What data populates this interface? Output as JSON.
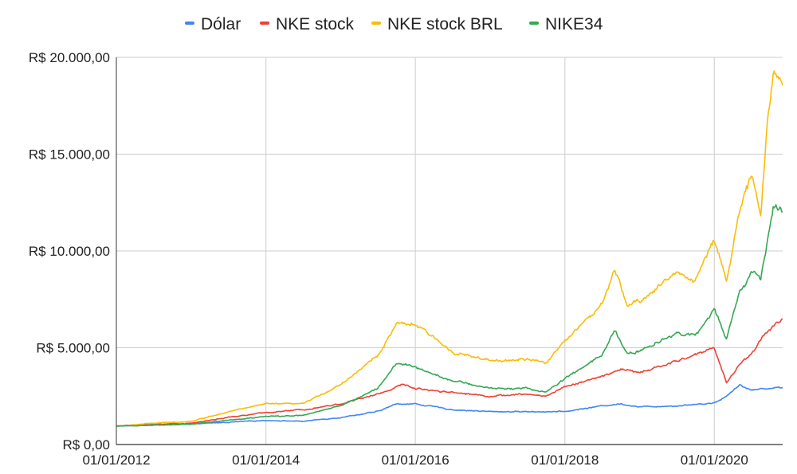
{
  "chart_data": {
    "type": "line",
    "title": "",
    "xlabel": "",
    "ylabel": "",
    "x_ticks": [
      "01/01/2012",
      "01/01/2014",
      "01/01/2016",
      "01/01/2018",
      "01/01/2020"
    ],
    "y_ticks": [
      "R$ 0,00",
      "R$ 5.000,00",
      "R$ 10.000,00",
      "R$ 15.000,00",
      "R$ 20.000,00"
    ],
    "xlim": [
      "2012-01-01",
      "2020-11-30"
    ],
    "ylim": [
      0,
      20000
    ],
    "grid": true,
    "legend_position": "top",
    "series": [
      {
        "name": "Dólar",
        "color": "#4285f4",
        "points": [
          [
            "2012-01-01",
            950
          ],
          [
            "2013-01-01",
            1060
          ],
          [
            "2013-07-01",
            1150
          ],
          [
            "2014-01-01",
            1250
          ],
          [
            "2014-07-01",
            1200
          ],
          [
            "2015-01-01",
            1400
          ],
          [
            "2015-07-01",
            1700
          ],
          [
            "2015-10-01",
            2100
          ],
          [
            "2016-01-01",
            2100
          ],
          [
            "2016-07-01",
            1800
          ],
          [
            "2017-01-01",
            1700
          ],
          [
            "2017-07-01",
            1700
          ],
          [
            "2018-01-01",
            1700
          ],
          [
            "2018-07-01",
            2000
          ],
          [
            "2018-10-01",
            2100
          ],
          [
            "2019-01-01",
            1950
          ],
          [
            "2019-07-01",
            2000
          ],
          [
            "2020-01-01",
            2150
          ],
          [
            "2020-03-01",
            2500
          ],
          [
            "2020-05-01",
            3100
          ],
          [
            "2020-07-01",
            2800
          ],
          [
            "2020-09-01",
            2900
          ],
          [
            "2020-11-30",
            2950
          ]
        ]
      },
      {
        "name": "NKE stock",
        "color": "#ea4335",
        "points": [
          [
            "2012-01-01",
            950
          ],
          [
            "2012-07-01",
            1050
          ],
          [
            "2013-01-01",
            1100
          ],
          [
            "2013-07-01",
            1400
          ],
          [
            "2014-01-01",
            1650
          ],
          [
            "2014-07-01",
            1800
          ],
          [
            "2015-01-01",
            2100
          ],
          [
            "2015-07-01",
            2600
          ],
          [
            "2015-11-01",
            3100
          ],
          [
            "2016-01-01",
            2900
          ],
          [
            "2016-07-01",
            2700
          ],
          [
            "2017-01-01",
            2500
          ],
          [
            "2017-07-01",
            2600
          ],
          [
            "2017-10-01",
            2500
          ],
          [
            "2018-01-01",
            3000
          ],
          [
            "2018-07-01",
            3500
          ],
          [
            "2018-10-01",
            3900
          ],
          [
            "2019-01-01",
            3700
          ],
          [
            "2019-07-01",
            4300
          ],
          [
            "2020-01-01",
            5000
          ],
          [
            "2020-03-01",
            3200
          ],
          [
            "2020-05-01",
            4100
          ],
          [
            "2020-07-01",
            4700
          ],
          [
            "2020-09-01",
            5700
          ],
          [
            "2020-11-30",
            6500
          ]
        ]
      },
      {
        "name": "NKE stock BRL",
        "color": "#fbbc04",
        "points": [
          [
            "2012-01-01",
            950
          ],
          [
            "2012-07-01",
            1100
          ],
          [
            "2013-01-01",
            1200
          ],
          [
            "2013-07-01",
            1700
          ],
          [
            "2014-01-01",
            2100
          ],
          [
            "2014-07-01",
            2100
          ],
          [
            "2015-01-01",
            3100
          ],
          [
            "2015-07-01",
            4600
          ],
          [
            "2015-10-01",
            6200
          ],
          [
            "2016-01-01",
            6200
          ],
          [
            "2016-07-01",
            4800
          ],
          [
            "2017-01-01",
            4300
          ],
          [
            "2017-07-01",
            4400
          ],
          [
            "2017-10-01",
            4200
          ],
          [
            "2018-01-01",
            5400
          ],
          [
            "2018-07-01",
            7200
          ],
          [
            "2018-09-01",
            9000
          ],
          [
            "2018-11-01",
            7200
          ],
          [
            "2019-01-01",
            7400
          ],
          [
            "2019-07-01",
            8900
          ],
          [
            "2019-10-01",
            8500
          ],
          [
            "2020-01-01",
            10600
          ],
          [
            "2020-03-01",
            8500
          ],
          [
            "2020-05-01",
            12000
          ],
          [
            "2020-07-01",
            13800
          ],
          [
            "2020-08-15",
            12000
          ],
          [
            "2020-09-15",
            16500
          ],
          [
            "2020-10-15",
            19200
          ],
          [
            "2020-11-30",
            18500
          ]
        ]
      },
      {
        "name": "NIKE34",
        "color": "#34a853",
        "points": [
          [
            "2012-01-01",
            950
          ],
          [
            "2012-07-01",
            1000
          ],
          [
            "2013-01-01",
            1050
          ],
          [
            "2013-07-01",
            1250
          ],
          [
            "2014-01-01",
            1450
          ],
          [
            "2014-07-01",
            1500
          ],
          [
            "2015-01-01",
            2000
          ],
          [
            "2015-07-01",
            2900
          ],
          [
            "2015-10-01",
            4200
          ],
          [
            "2016-01-01",
            4000
          ],
          [
            "2016-07-01",
            3300
          ],
          [
            "2017-01-01",
            2900
          ],
          [
            "2017-07-01",
            2900
          ],
          [
            "2017-10-01",
            2700
          ],
          [
            "2018-01-01",
            3400
          ],
          [
            "2018-07-01",
            4600
          ],
          [
            "2018-09-01",
            5900
          ],
          [
            "2018-11-01",
            4700
          ],
          [
            "2019-01-01",
            4800
          ],
          [
            "2019-07-01",
            5800
          ],
          [
            "2019-10-01",
            5600
          ],
          [
            "2020-01-01",
            7000
          ],
          [
            "2020-03-01",
            5400
          ],
          [
            "2020-05-01",
            7800
          ],
          [
            "2020-07-01",
            8900
          ],
          [
            "2020-08-15",
            8600
          ],
          [
            "2020-09-15",
            10400
          ],
          [
            "2020-10-15",
            12300
          ],
          [
            "2020-11-30",
            11900
          ]
        ]
      }
    ]
  }
}
